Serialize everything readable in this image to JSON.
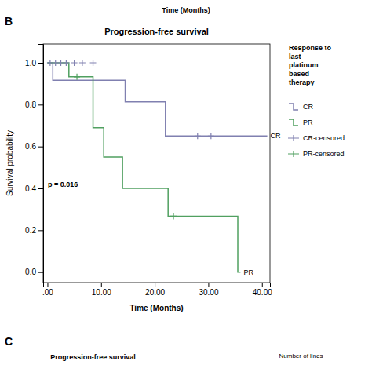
{
  "chart_data": {
    "type": "line",
    "title": "Progression-free survival",
    "xlabel": "Time (Months)",
    "ylabel": "Survival probability",
    "annotations": [
      "p = 0.016",
      "B",
      "C",
      "Progression-free survival",
      "Time (Months)",
      "Number of lines"
    ],
    "legend_title": "Response to\nlast\nplatinum\nbased\ntherapy",
    "legend": "right",
    "grid": false,
    "xlim": [
      -0.8,
      41.5
    ],
    "ylim": [
      -0.05,
      1.09
    ],
    "xticks": [
      {
        "value": 0,
        "label": ".00"
      },
      {
        "value": 10.0,
        "label": "10.00"
      },
      {
        "value": 20.0,
        "label": "20.00"
      },
      {
        "value": 30.0,
        "label": "30.00"
      },
      {
        "value": 40.0,
        "label": "40.00"
      }
    ],
    "yticks": [
      {
        "value": 0.0,
        "label": "0.0"
      },
      0.2,
      0.4,
      0.6,
      0.8,
      {
        "value": 1.0,
        "label": "1.0"
      }
    ],
    "series": [
      {
        "name": "CR",
        "type": "step",
        "color": "#8080b0",
        "x": [
          0,
          1.0,
          1.0,
          14.5,
          14.5,
          22.0,
          22.0,
          41.0
        ],
        "values": [
          1.0,
          1.0,
          0.917,
          0.917,
          0.813,
          0.813,
          0.65,
          0.65
        ]
      },
      {
        "name": "PR",
        "type": "step",
        "color": "#50a060",
        "x": [
          0,
          4.0,
          4.0,
          8.5,
          8.5,
          10.5,
          10.5,
          14.0,
          14.0,
          22.5,
          22.5,
          25.5,
          25.5,
          35.5,
          35.5,
          36.0
        ],
        "values": [
          1.0,
          1.0,
          0.933,
          0.933,
          0.69,
          0.69,
          0.55,
          0.55,
          0.4,
          0.4,
          0.267,
          0.267,
          0.267,
          0.267,
          0.0,
          0.0
        ]
      },
      {
        "name": "CR-censored",
        "type": "scatter",
        "marker": "plus",
        "color": "#8080b0",
        "x": [
          0.5,
          1.5,
          2.5,
          3.5,
          5.0,
          6.5,
          8.5,
          28.0,
          30.5
        ],
        "values": [
          1.0,
          1.0,
          1.0,
          1.0,
          1.0,
          1.0,
          1.0,
          0.65,
          0.65
        ]
      },
      {
        "name": "PR-censored",
        "type": "scatter",
        "marker": "plus",
        "color": "#50a060",
        "x": [
          5.5,
          23.5
        ],
        "values": [
          0.933,
          0.267
        ]
      }
    ]
  }
}
